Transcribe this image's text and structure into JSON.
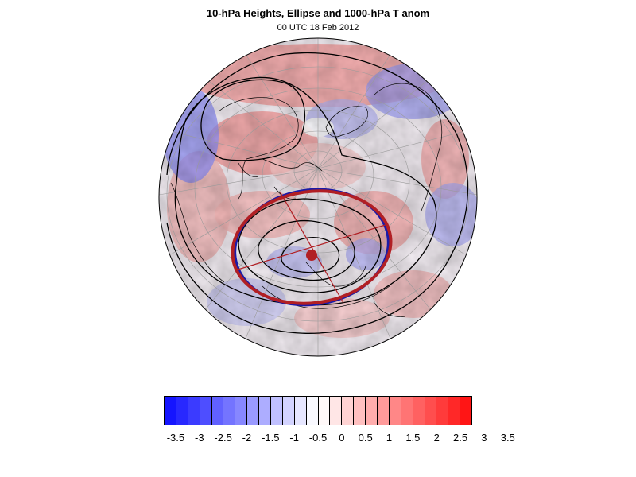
{
  "title": "10-hPa Heights, Ellipse and 1000-hPa T anom",
  "subtitle": "00 UTC 18 Feb 2012",
  "map": {
    "projection": "orthographic polar (Northern Hemisphere)",
    "fields": [
      "10-hPa height contours",
      "fitted vortex ellipse",
      "1000-hPa temperature anomaly shading"
    ],
    "colors": {
      "contour": "#000000",
      "ellipse_outer": "#b11f24",
      "ellipse_inner": "#1a1aa8",
      "centroid": "#b11f24",
      "graticule": "#9a9a9a",
      "coast": "#000000"
    }
  },
  "colorbar": {
    "colors": [
      "#1515ff",
      "#2828ff",
      "#3b3bff",
      "#4e4eff",
      "#6161ff",
      "#7474ff",
      "#8787ff",
      "#9a9aff",
      "#adadff",
      "#c0c0ff",
      "#d3d3ff",
      "#e6e6ff",
      "#f9f9ff",
      "#fff9f9",
      "#ffe6e6",
      "#ffd3d3",
      "#ffc0c0",
      "#ffadad",
      "#ff9a9a",
      "#ff8787",
      "#ff7474",
      "#ff6161",
      "#ff4e4e",
      "#ff3b3b",
      "#ff2828",
      "#ff1515"
    ],
    "labels": [
      "-3.5",
      "-3",
      "-2.5",
      "-2",
      "-1.5",
      "-1",
      "-0.5",
      "0",
      "0.5",
      "1",
      "1.5",
      "2",
      "2.5",
      "3",
      "3.5"
    ]
  }
}
